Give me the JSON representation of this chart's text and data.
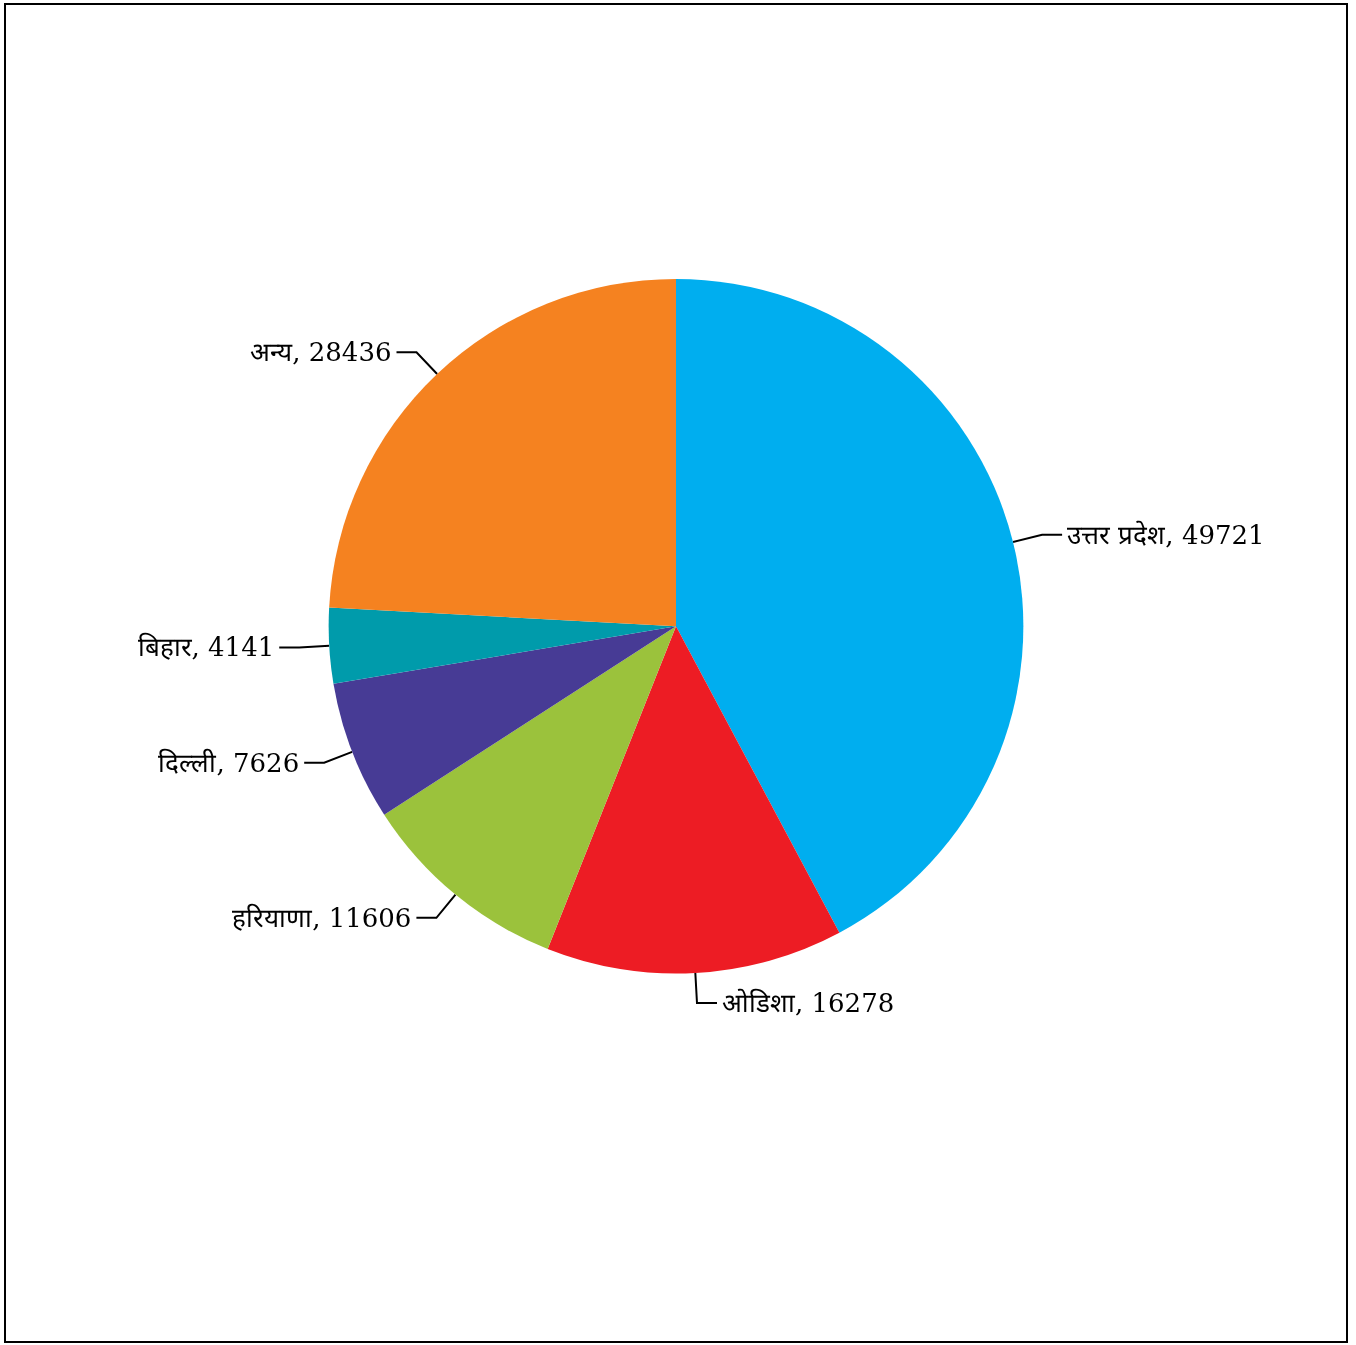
{
  "chart_data": {
    "type": "pie",
    "categories": [
      "उत्तर प्रदेश",
      "ओडिशा",
      "हरियाणा",
      "दिल्ली",
      "बिहार",
      "अन्य"
    ],
    "values": [
      49721,
      16278,
      11606,
      7626,
      4141,
      28436
    ],
    "colors": [
      "#00aeef",
      "#ed1c24",
      "#9bc23c",
      "#473b95",
      "#009bab",
      "#f58220"
    ],
    "value_labels": [
      ", 49721",
      ", 16278",
      ", 11606",
      ", 7626",
      ", 4141",
      ", 28436"
    ],
    "legend": false
  }
}
